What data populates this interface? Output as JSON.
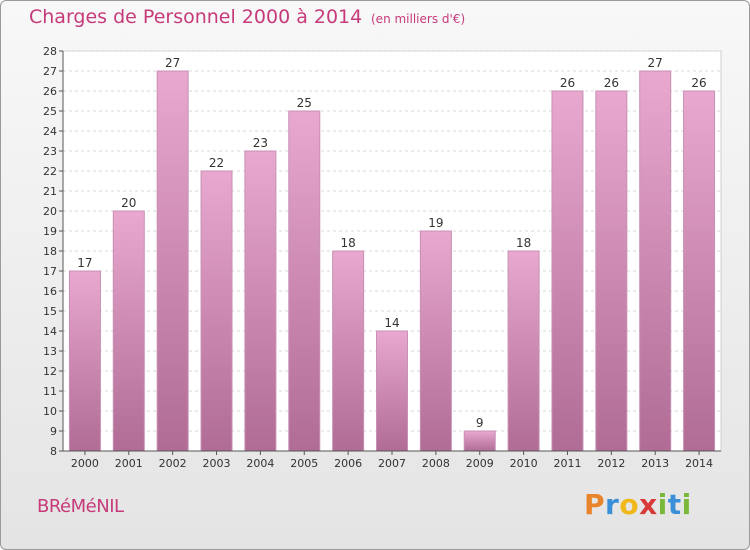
{
  "title": "Charges de Personnel 2000 à 2014",
  "subtitle": "(en milliers d'€)",
  "town": "BRéMéNIL",
  "logo": {
    "letters": [
      "P",
      "r",
      "o",
      "x",
      "i",
      "t",
      "i"
    ],
    "colors": [
      "#e8842a",
      "#3a8fd8",
      "#f0b81a",
      "#d83a3a",
      "#7ab83a",
      "#3a8fd8",
      "#7ab83a"
    ]
  },
  "colors": {
    "accent": "#c73a7a",
    "bar_top": "#e8a8cf",
    "bar_bottom": "#b06c95"
  },
  "chart_data": {
    "type": "bar",
    "categories": [
      "2000",
      "2001",
      "2002",
      "2003",
      "2004",
      "2005",
      "2006",
      "2007",
      "2008",
      "2009",
      "2010",
      "2011",
      "2012",
      "2013",
      "2014"
    ],
    "values": [
      17,
      20,
      27,
      22,
      23,
      25,
      18,
      14,
      19,
      9,
      18,
      26,
      26,
      27,
      26
    ],
    "ylim": [
      8,
      28
    ],
    "yticks": [
      8,
      9,
      10,
      11,
      12,
      13,
      14,
      15,
      16,
      17,
      18,
      19,
      20,
      21,
      22,
      23,
      24,
      25,
      26,
      27,
      28
    ],
    "grid": true,
    "data_labels": true
  }
}
